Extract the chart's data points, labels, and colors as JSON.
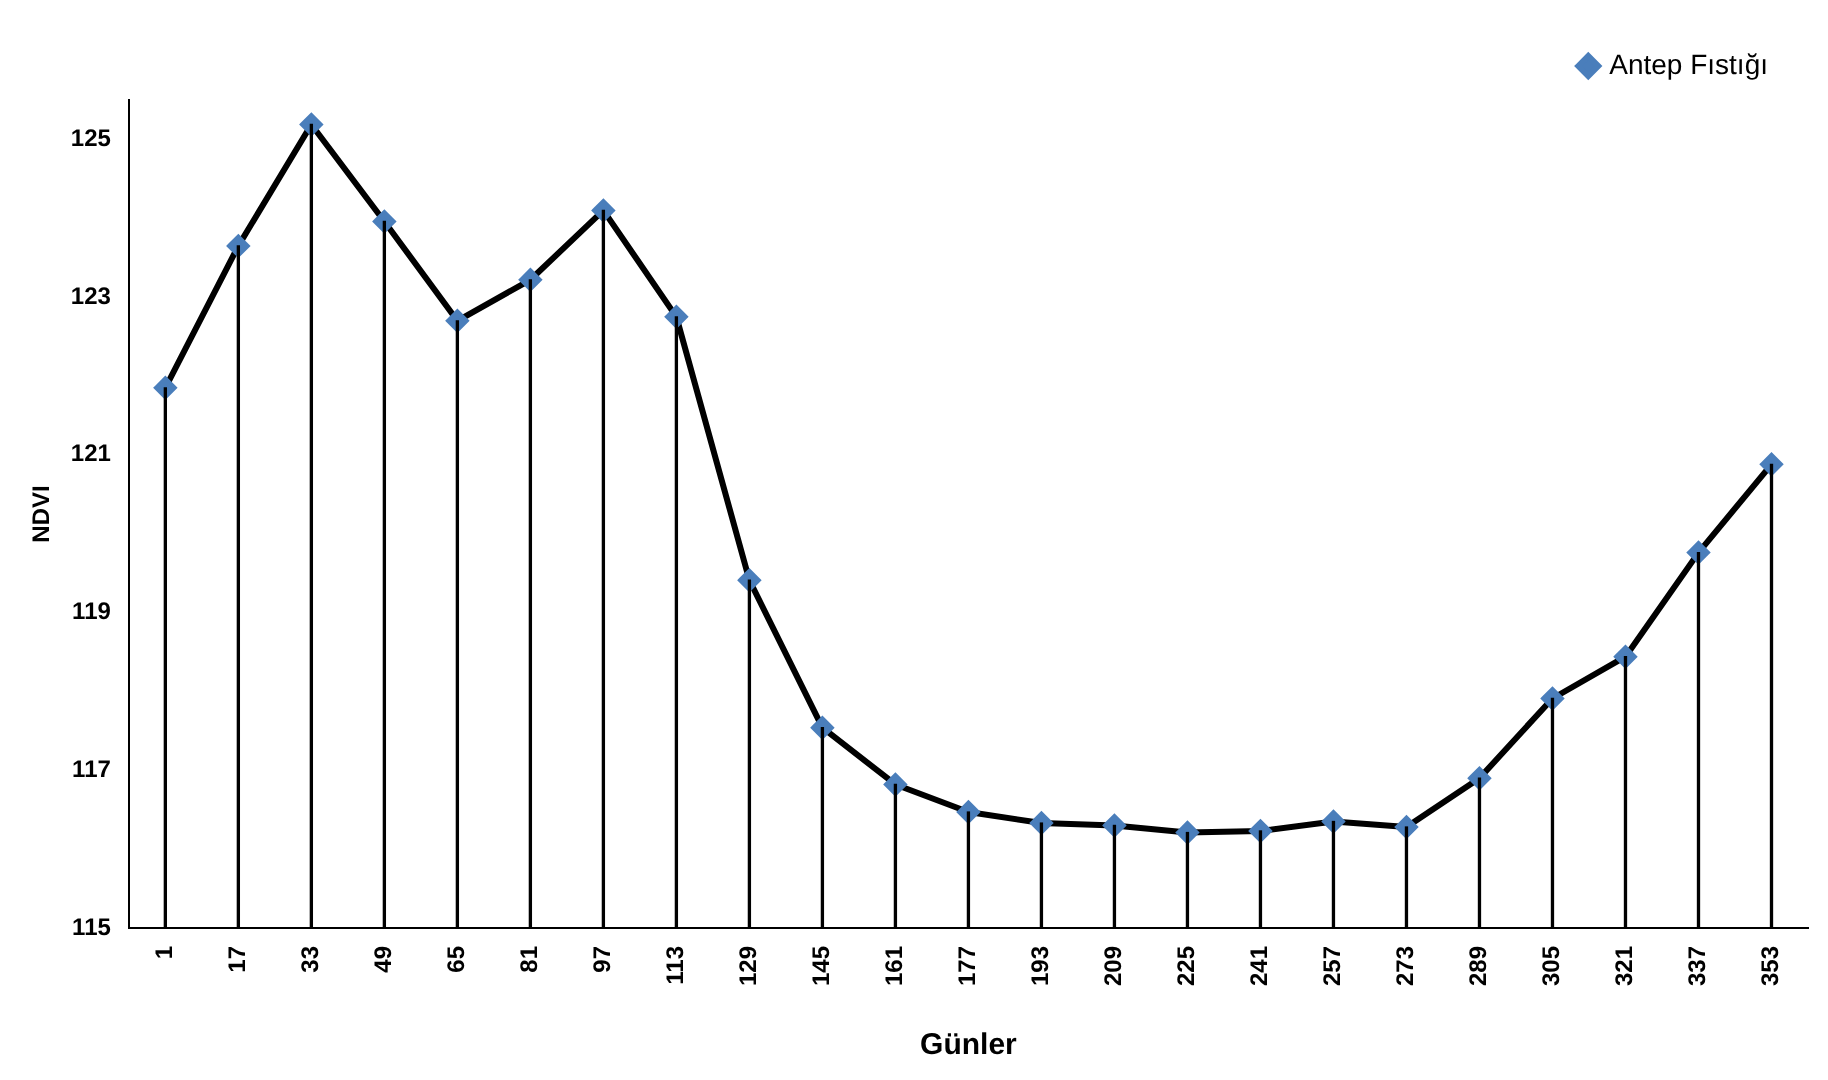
{
  "chart_data": {
    "type": "line",
    "xlabel": "Günler",
    "ylabel": "NDVI",
    "categories": [
      "1",
      "17",
      "33",
      "49",
      "65",
      "81",
      "97",
      "113",
      "129",
      "145",
      "161",
      "177",
      "193",
      "209",
      "225",
      "241",
      "257",
      "273",
      "289",
      "305",
      "321",
      "337",
      "353"
    ],
    "series": [
      {
        "name": "Antep Fıstığı",
        "color": "#4a7ebb",
        "values": [
          121.85,
          123.65,
          125.19,
          123.96,
          122.7,
          123.22,
          124.1,
          122.75,
          119.41,
          117.54,
          116.82,
          116.47,
          116.33,
          116.3,
          116.21,
          116.23,
          116.35,
          116.28,
          116.9,
          117.91,
          118.44,
          119.76,
          120.88
        ]
      },
      {
        "type": "bar",
        "color": "#000000",
        "values": [
          121.85,
          123.65,
          125.19,
          123.96,
          122.7,
          123.22,
          124.1,
          122.75,
          119.41,
          117.54,
          116.82,
          116.47,
          116.33,
          116.3,
          116.21,
          116.23,
          116.35,
          116.28,
          116.9,
          117.91,
          118.44,
          119.76,
          120.88
        ]
      }
    ],
    "ylim": [
      115,
      125.5
    ],
    "yticks": [
      115,
      117,
      119,
      121,
      123,
      125
    ],
    "grid": false,
    "legend": "top right",
    "marker": "diamond",
    "line_style": "solid"
  }
}
